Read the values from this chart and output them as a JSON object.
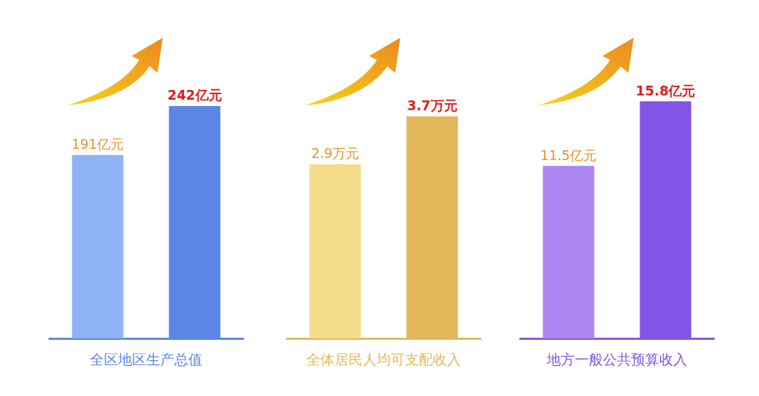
{
  "chart_data": [
    {
      "type": "bar",
      "categories": [
        null,
        null
      ],
      "values": [
        191,
        242
      ],
      "value_labels": [
        "191亿元",
        "242亿元"
      ],
      "colors": [
        "#8fb1f5",
        "#5a86e6"
      ],
      "xlabel": "全区地区生产总值",
      "tick_labels": false,
      "grid": false,
      "legend": false
    },
    {
      "type": "bar",
      "categories": [
        null,
        null
      ],
      "values": [
        2.9,
        3.7
      ],
      "value_labels": [
        "2.9万元",
        "3.7万元"
      ],
      "colors": [
        "#f5dc8a",
        "#e2b85a"
      ],
      "xlabel": "全体居民人均可支配收入",
      "tick_labels": false,
      "grid": false,
      "legend": false
    },
    {
      "type": "bar",
      "categories": [
        null,
        null
      ],
      "values": [
        11.5,
        15.8
      ],
      "value_labels": [
        "11.5亿元",
        "15.8亿元"
      ],
      "colors": [
        "#ab86f3",
        "#8355e6"
      ],
      "xlabel": "地方一般公共预算收入",
      "tick_labels": false,
      "grid": false,
      "legend": false
    }
  ]
}
